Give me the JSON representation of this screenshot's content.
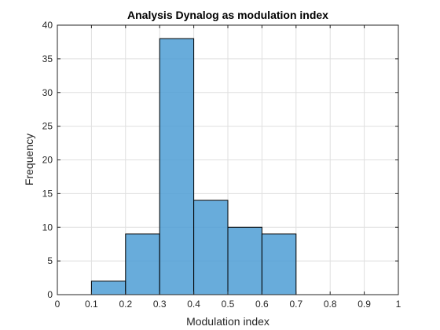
{
  "chart_data": {
    "type": "bar",
    "title": "Analysis Dynalog as modulation index",
    "xlabel": "Modulation index",
    "ylabel": "Frequency",
    "xlim": [
      0,
      1
    ],
    "ylim": [
      0,
      40
    ],
    "xticks": [
      "0",
      "0.1",
      "0.2",
      "0.3",
      "0.4",
      "0.5",
      "0.6",
      "0.7",
      "0.8",
      "0.9",
      "1"
    ],
    "yticks": [
      "0",
      "5",
      "10",
      "15",
      "20",
      "25",
      "30",
      "35",
      "40"
    ],
    "bins": [
      {
        "x0": 0.1,
        "x1": 0.2,
        "value": 2
      },
      {
        "x0": 0.2,
        "x1": 0.3,
        "value": 9
      },
      {
        "x0": 0.3,
        "x1": 0.4,
        "value": 38
      },
      {
        "x0": 0.4,
        "x1": 0.5,
        "value": 14
      },
      {
        "x0": 0.5,
        "x1": 0.6,
        "value": 10
      },
      {
        "x0": 0.6,
        "x1": 0.7,
        "value": 9
      }
    ],
    "grid": true,
    "bar_color": "#4d9ed5",
    "edge_color": "#000000"
  }
}
